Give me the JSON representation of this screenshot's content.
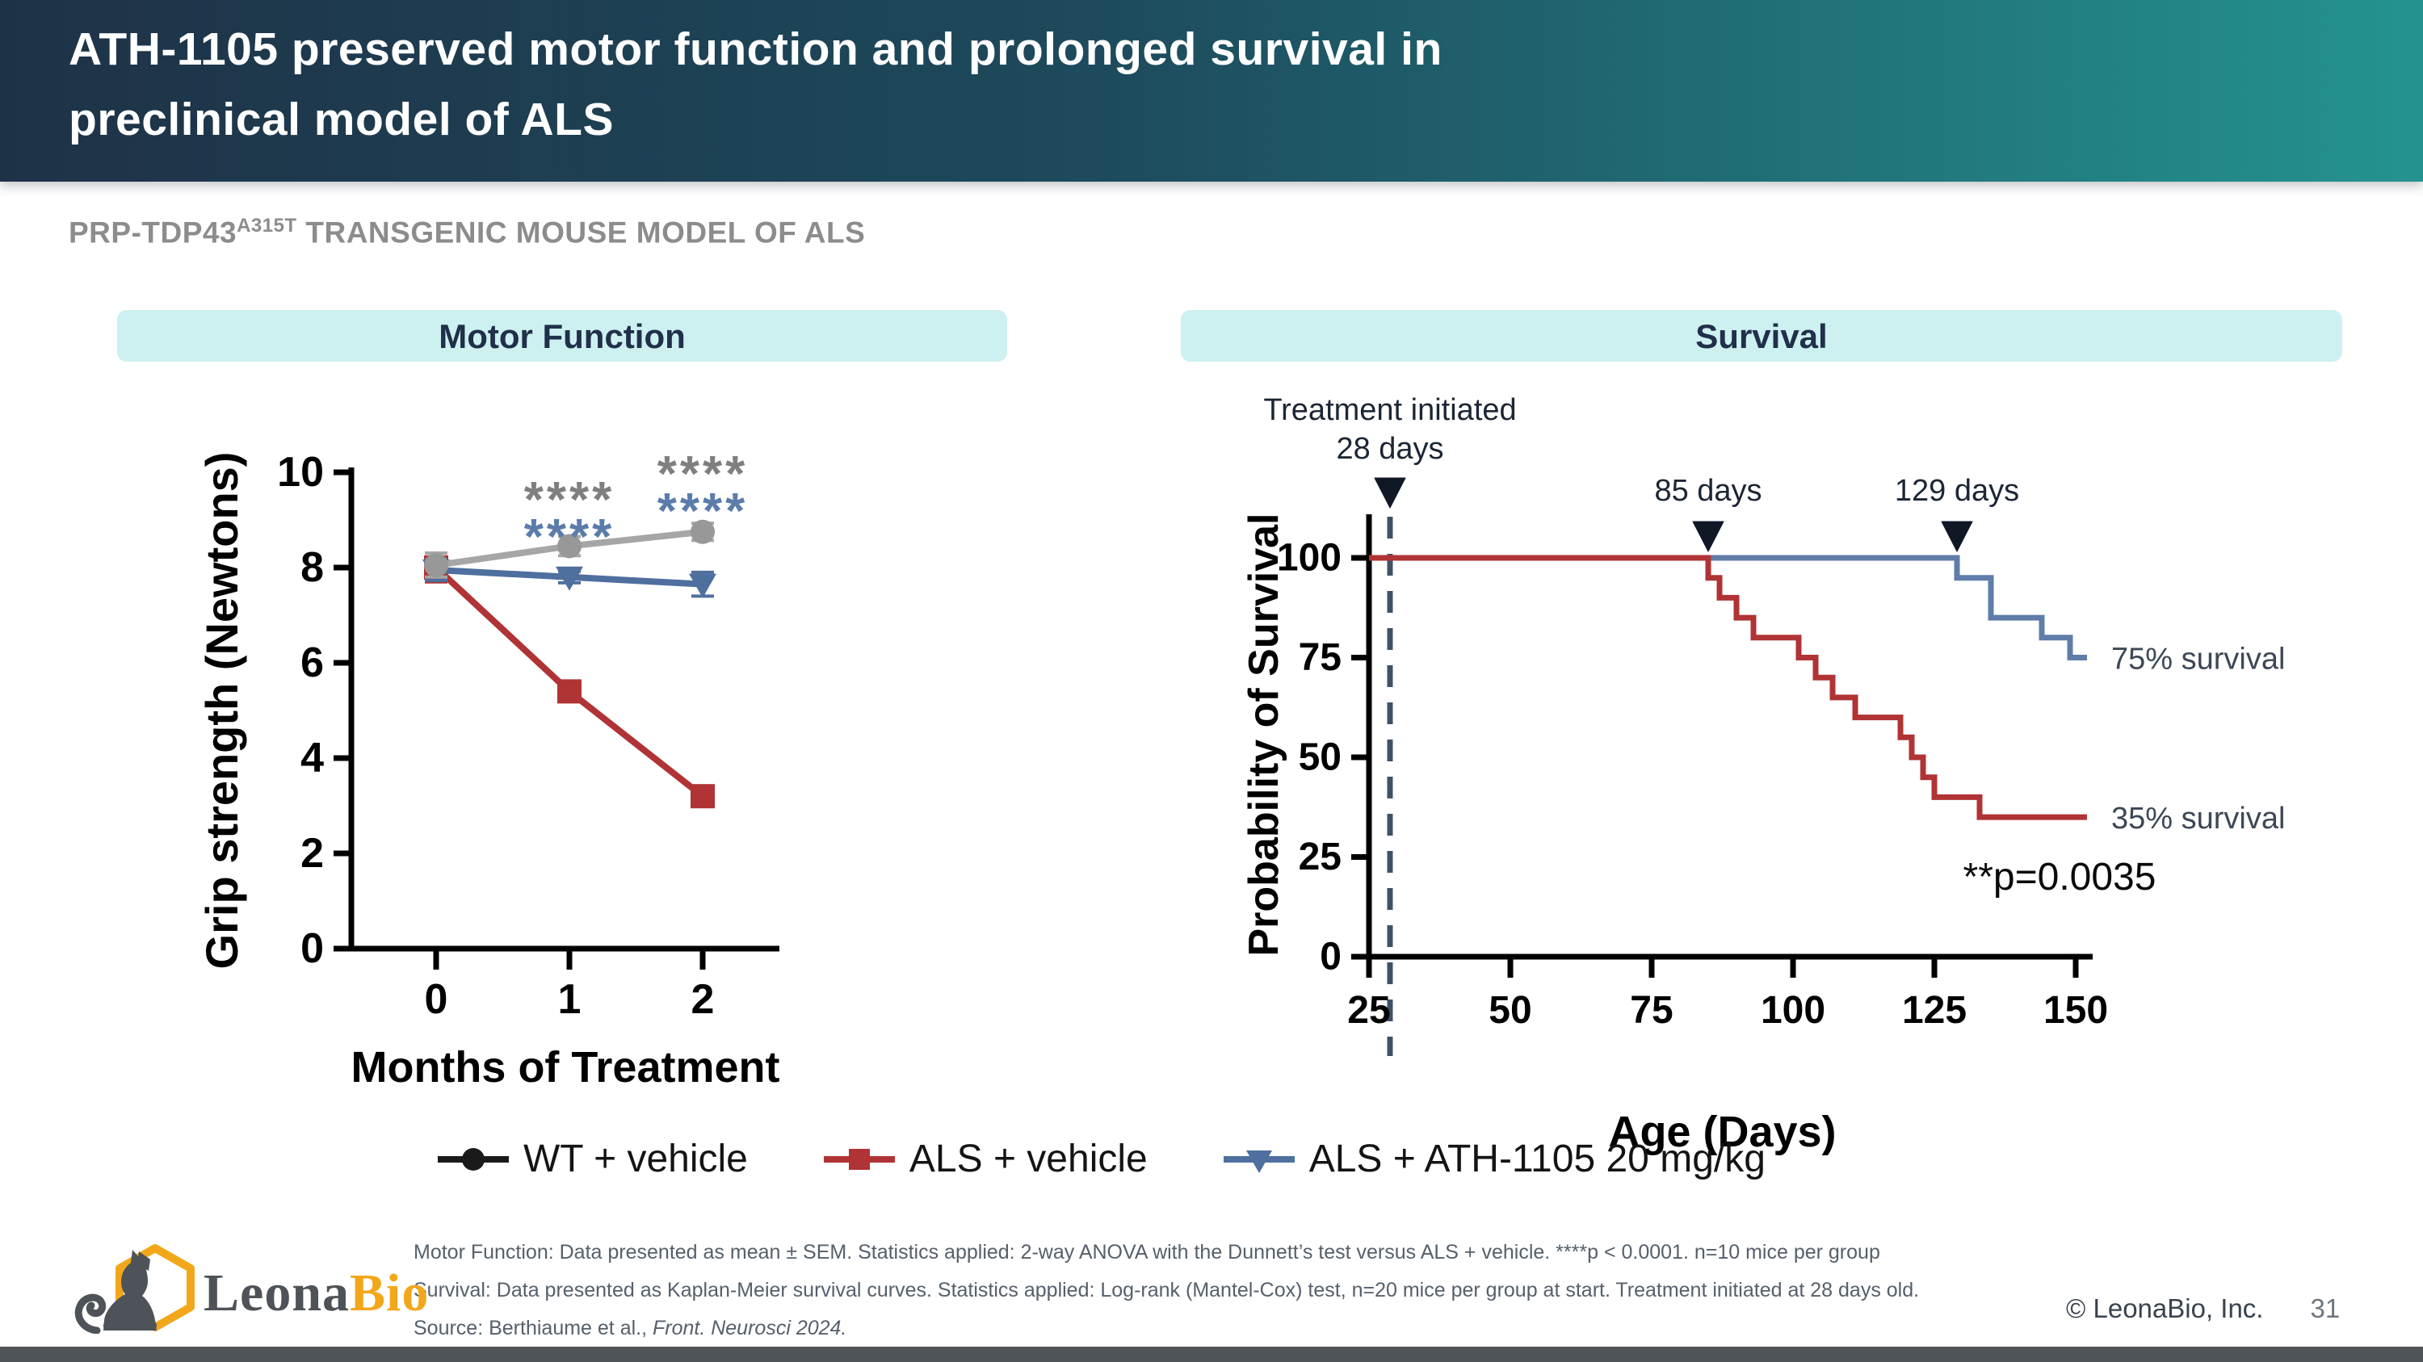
{
  "slide": {
    "title_line1": "ATH-1105 preserved motor function and prolonged survival in",
    "title_line2": "preclinical model of ALS",
    "subtitle_prefix": "PRP-TDP43",
    "subtitle_sup": "A315T",
    "subtitle_suffix": " TRANSGENIC MOUSE MODEL OF ALS",
    "footer_copyright": "© LeonaBio, Inc.",
    "page_number": "31",
    "logo_leona": "Leona",
    "logo_bio": "Bio"
  },
  "panels": {
    "motor_header": "Motor Function",
    "survival_header": "Survival"
  },
  "legend": [
    {
      "label": "WT + vehicle",
      "marker": "circle",
      "color": "#1A1A1A"
    },
    {
      "label": "ALS + vehicle",
      "marker": "square",
      "color": "#B03335"
    },
    {
      "label": "ALS + ATH-1105 20 mg/kg",
      "marker": "triangle-down",
      "color": "#4F6F9F"
    }
  ],
  "footnotes": {
    "line1": "Motor Function: Data presented as mean ± SEM. Statistics applied: 2-way ANOVA with the Dunnett’s test versus ALS + vehicle. ****p < 0.0001. n=10 mice per group",
    "line2": "Survival: Data presented as Kaplan-Meier survival curves. Statistics applied: Log-rank (Mantel-Cox) test, n=20 mice per group at start. Treatment initiated at 28 days old.",
    "source_prefix": "Source: Berthiaume et al., ",
    "source_italic": "Front. Neurosci 2024."
  },
  "colors": {
    "header_gradient_left": "#1E3247",
    "header_gradient_right": "#24938F",
    "band_bg": "#CDF0F0",
    "red": "#B03335",
    "gray_line": "#A6A6A6",
    "gray_marker": "#989898",
    "motor_blue": "#4F6F9F",
    "survival_blue": "#5F7DA8",
    "star_gray": "#7F7F7F",
    "star_blue": "#5B7CAB",
    "annotation_dark": "#1C2634",
    "dashed_line": "#3E5266",
    "bottom_bar": "#4F5458",
    "logo_orange": "#F2A71B",
    "logo_gray": "#4D5358"
  },
  "chart_data": [
    {
      "type": "line",
      "title": "Motor Function",
      "xlabel": "Months of Treatment",
      "ylabel": "Grip strength (Newtons)",
      "x": [
        0,
        1,
        2
      ],
      "ylim": [
        0,
        10
      ],
      "yticks": [
        0,
        2,
        4,
        6,
        8,
        10
      ],
      "grid": false,
      "series": [
        {
          "name": "WT + vehicle",
          "marker": "circle",
          "color": "#A6A6A6",
          "marker_color": "#989898",
          "values": [
            8.05,
            8.45,
            8.75
          ],
          "sem": [
            0.25,
            0.2,
            0.18
          ]
        },
        {
          "name": "ALS + vehicle",
          "marker": "square",
          "color": "#B03335",
          "marker_color": "#B03335",
          "values": [
            8.0,
            5.4,
            3.2
          ],
          "sem": [
            0.3,
            0.12,
            0.12
          ]
        },
        {
          "name": "ALS + ATH-1105 20 mg/kg",
          "marker": "triangle-down",
          "color": "#4F6F9F",
          "marker_color": "#4F6F9F",
          "values": [
            7.95,
            7.8,
            7.65
          ],
          "sem": [
            0.22,
            0.12,
            0.25
          ]
        }
      ],
      "significance": [
        {
          "x": 1,
          "stars": [
            {
              "text": "****",
              "color": "#7F7F7F"
            },
            {
              "text": "****",
              "color": "#5B7CAB"
            }
          ]
        },
        {
          "x": 2,
          "stars": [
            {
              "text": "****",
              "color": "#7F7F7F"
            },
            {
              "text": "****",
              "color": "#5B7CAB"
            }
          ]
        }
      ]
    },
    {
      "type": "line",
      "subtype": "kaplan-meier-step",
      "title": "Survival",
      "xlabel": "Age (Days)",
      "ylabel": "Probability of Survival",
      "xlim": [
        25,
        155
      ],
      "xticks": [
        25,
        50,
        75,
        100,
        125,
        150
      ],
      "ylim": [
        0,
        100
      ],
      "yticks": [
        0,
        25,
        50,
        75,
        100
      ],
      "grid": false,
      "series": [
        {
          "name": "ALS + ATH-1105 20 mg/kg",
          "color": "#5F7DA8",
          "end_label": "75% survival",
          "steps": [
            [
              25,
              100
            ],
            [
              129,
              100
            ],
            [
              129,
              95
            ],
            [
              135,
              95
            ],
            [
              135,
              85
            ],
            [
              144,
              85
            ],
            [
              144,
              80
            ],
            [
              149,
              80
            ],
            [
              149,
              75
            ],
            [
              152,
              75
            ]
          ]
        },
        {
          "name": "ALS + vehicle",
          "color": "#B03335",
          "end_label": "35% survival",
          "steps": [
            [
              25,
              100
            ],
            [
              85,
              100
            ],
            [
              85,
              95
            ],
            [
              87,
              95
            ],
            [
              87,
              90
            ],
            [
              90,
              90
            ],
            [
              90,
              85
            ],
            [
              93,
              85
            ],
            [
              93,
              80
            ],
            [
              101,
              80
            ],
            [
              101,
              75
            ],
            [
              104,
              75
            ],
            [
              104,
              70
            ],
            [
              107,
              70
            ],
            [
              107,
              65
            ],
            [
              111,
              65
            ],
            [
              111,
              60
            ],
            [
              119,
              60
            ],
            [
              119,
              55
            ],
            [
              121,
              55
            ],
            [
              121,
              50
            ],
            [
              123,
              50
            ],
            [
              123,
              45
            ],
            [
              125,
              45
            ],
            [
              125,
              40
            ],
            [
              133,
              40
            ],
            [
              133,
              35
            ],
            [
              152,
              35
            ]
          ]
        }
      ],
      "annotations": {
        "treatment_line1": "Treatment initiated",
        "treatment_line2": "28 days",
        "treatment_day": 28,
        "arrows": [
          {
            "day": 85,
            "label": "85 days"
          },
          {
            "day": 129,
            "label": "129 days"
          }
        ],
        "p_value": "**p=0.0035"
      }
    }
  ]
}
